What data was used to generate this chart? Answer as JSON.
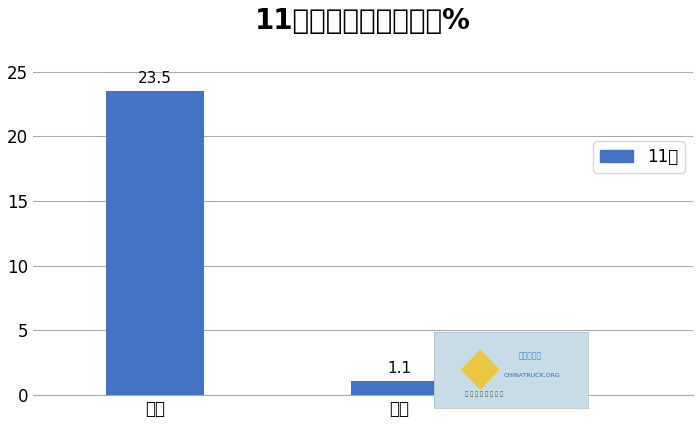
{
  "title": "11月冷藏车销量同环比%",
  "categories": [
    "同比",
    "环比"
  ],
  "values": [
    23.5,
    1.1
  ],
  "bar_color": "#4472C4",
  "bar_width": 0.4,
  "ylim": [
    0,
    27
  ],
  "yticks": [
    0,
    5,
    10,
    15,
    20,
    25
  ],
  "legend_label": "11月",
  "title_fontsize": 20,
  "tick_fontsize": 12,
  "label_fontsize": 12,
  "annotation_fontsize": 11,
  "background_color": "#ffffff",
  "grid_color": "#aaaaaa"
}
